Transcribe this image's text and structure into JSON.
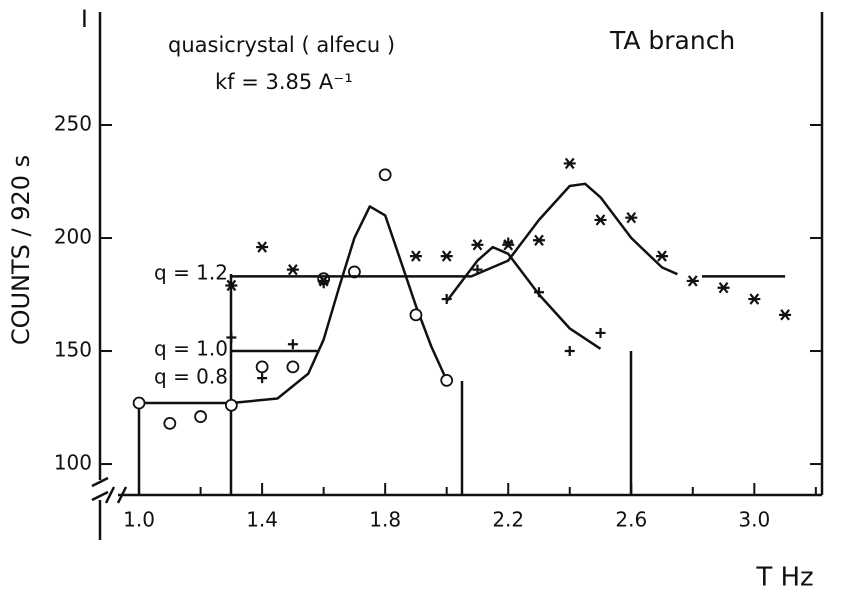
{
  "chart_data": {
    "type": "scatter",
    "annotations": [
      "I",
      "quasicrystal ( alfecu )",
      "kf = 3.85 A⁻¹",
      "TA branch"
    ],
    "xlabel": "T Hz",
    "ylabel": "COUNTS / 920 s",
    "xlim": [
      0.873,
      3.22
    ],
    "ylim": [
      86.3,
      300
    ],
    "xticks": [
      {
        "value": 1,
        "label": "1.0"
      },
      1.4,
      1.8,
      2.2,
      2.6,
      {
        "value": 3,
        "label": "3.0"
      }
    ],
    "xminor": [
      1.2,
      1.6,
      2,
      2.4,
      2.8,
      3.2
    ],
    "yticks": [
      100,
      150,
      200,
      250
    ],
    "color": "#111111",
    "series": [
      {
        "name": "q = 0.8",
        "marker": "circle",
        "x": [
          1.0,
          1.1,
          1.2,
          1.3,
          1.4,
          1.5,
          1.6,
          1.7,
          1.8,
          1.9,
          2.0
        ],
        "values": [
          127,
          118,
          121,
          126,
          143,
          143,
          182,
          185,
          228,
          166,
          137
        ],
        "fit": {
          "x": [
            1.0,
            1.3,
            1.45,
            1.55,
            1.6,
            1.65,
            1.7,
            1.75,
            1.8,
            1.85,
            1.9,
            1.95,
            2.0
          ],
          "values": [
            127,
            127,
            129,
            140,
            155,
            178,
            200,
            214,
            210,
            190,
            170,
            152,
            137
          ]
        }
      },
      {
        "name": "q = 1.0",
        "marker": "plus",
        "x": [
          1.3,
          1.4,
          1.5,
          1.6,
          2.0,
          2.1,
          2.2,
          2.3,
          2.4,
          2.5
        ],
        "values": [
          156,
          138,
          153,
          180,
          173,
          186,
          198,
          176,
          150,
          158
        ],
        "fit": {
          "x": [
            1.3,
            1.58,
            1.9,
            2.0,
            2.1,
            2.15,
            2.2,
            2.3,
            2.4,
            2.5
          ],
          "values": [
            150,
            150,
            null,
            172,
            190,
            196,
            193,
            175,
            160,
            151
          ]
        }
      },
      {
        "name": "q = 1.2",
        "marker": "star",
        "x": [
          1.3,
          1.4,
          1.5,
          1.6,
          1.9,
          2.0,
          2.1,
          2.2,
          2.3,
          2.4,
          2.5,
          2.6,
          2.7,
          2.8,
          2.9,
          3.0,
          3.1
        ],
        "values": [
          179,
          196,
          186,
          181,
          192,
          192,
          197,
          197,
          199,
          233,
          208,
          209,
          192,
          181,
          178,
          173,
          166
        ],
        "fit": {
          "x": [
            1.3,
            2.08,
            2.2,
            2.3,
            2.4,
            2.45,
            2.5,
            2.6,
            2.7,
            2.75,
            2.8,
            2.83,
            3.1
          ],
          "values": [
            183,
            183,
            190,
            208,
            223,
            224,
            218,
            200,
            187,
            184,
            null,
            183,
            183
          ]
        }
      }
    ]
  }
}
